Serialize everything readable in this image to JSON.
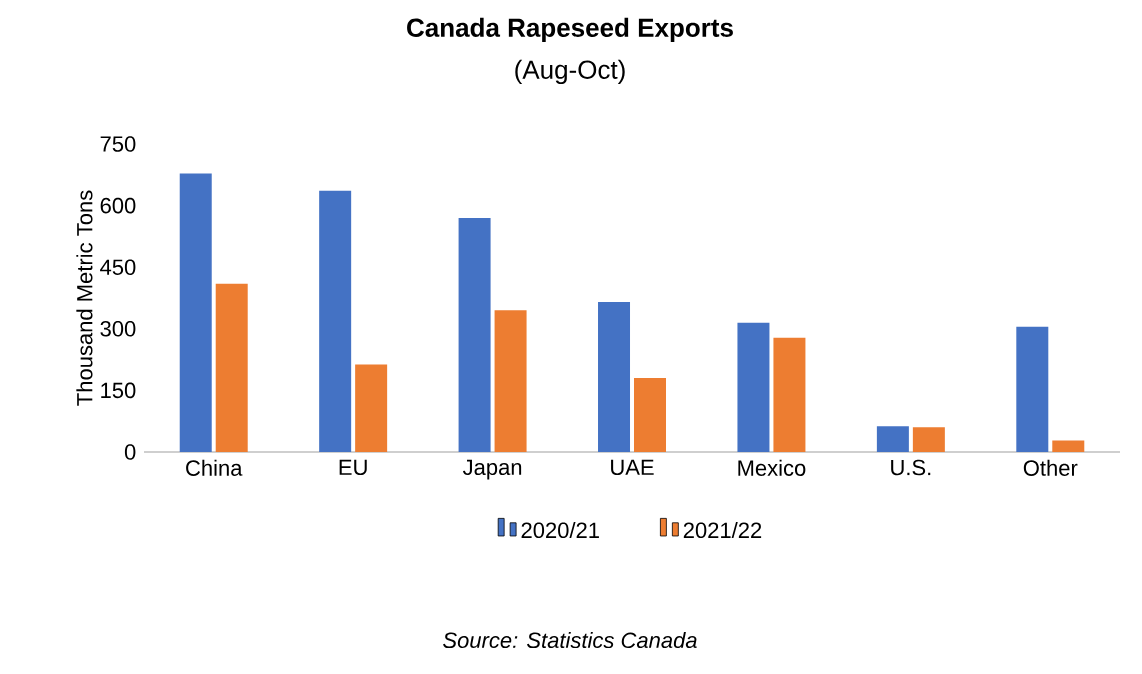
{
  "chart_data": {
    "type": "bar",
    "title": "Canada Rapeseed Exports",
    "subtitle": "(Aug-Oct)",
    "ylabel": "Thousand Metric Tons",
    "categories": [
      "China",
      "EU",
      "Japan",
      "UAE",
      "Mexico",
      "U.S.",
      "Other"
    ],
    "series": [
      {
        "name": "2020/21",
        "color": "#4472c4",
        "values": [
          678,
          636,
          570,
          365,
          315,
          63,
          305
        ]
      },
      {
        "name": "2021/22",
        "color": "#ed7d31",
        "values": [
          410,
          213,
          345,
          180,
          278,
          60,
          28
        ]
      }
    ],
    "ylim": [
      0,
      750
    ],
    "yticks": [
      0,
      150,
      300,
      450,
      600,
      750
    ],
    "legend": "bottom",
    "annotations": [
      "Source: Statistics Canada"
    ]
  }
}
